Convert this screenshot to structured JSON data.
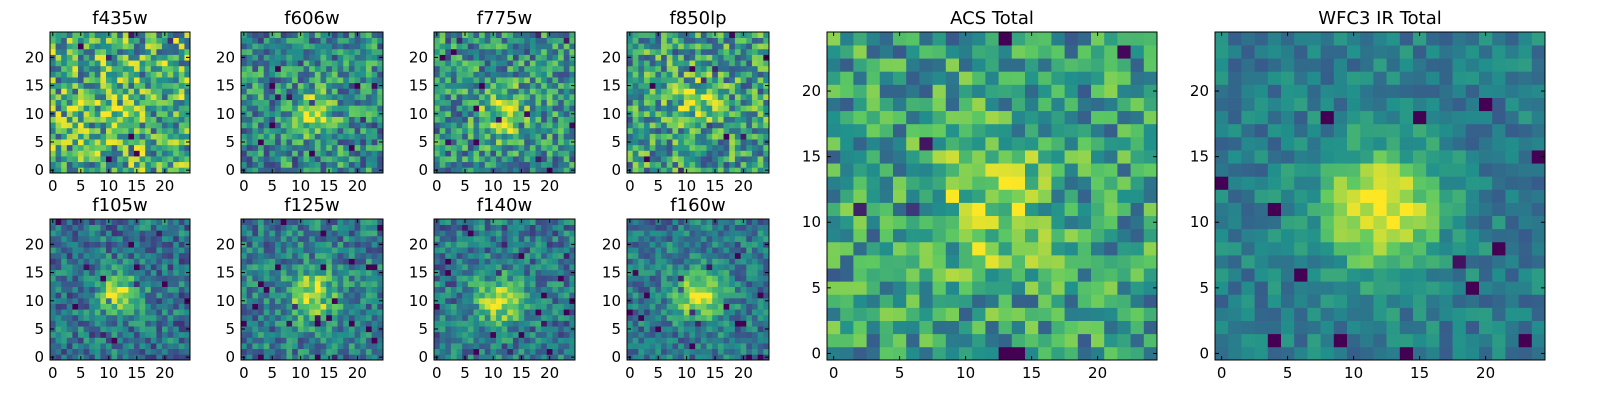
{
  "chart_data": [
    {
      "type": "heatmap",
      "title": "f435w",
      "seed": 11,
      "center": [
        12,
        10
      ],
      "signal": 0.12,
      "noise": 0.75,
      "base": 0.62,
      "sigma": 3.0,
      "xlim": [
        0,
        24
      ],
      "ylim": [
        0,
        24
      ],
      "xticks": [
        0,
        5,
        10,
        15,
        20
      ],
      "yticks": [
        0,
        5,
        10,
        15,
        20
      ]
    },
    {
      "type": "heatmap",
      "title": "f606w",
      "seed": 23,
      "center": [
        12,
        10
      ],
      "signal": 0.35,
      "noise": 0.6,
      "base": 0.48,
      "sigma": 3.0,
      "xlim": [
        0,
        24
      ],
      "ylim": [
        0,
        24
      ],
      "xticks": [
        0,
        5,
        10,
        15,
        20
      ],
      "yticks": [
        0,
        5,
        10,
        15,
        20
      ]
    },
    {
      "type": "heatmap",
      "title": "f775w",
      "seed": 37,
      "center": [
        12,
        10
      ],
      "signal": 0.35,
      "noise": 0.6,
      "base": 0.5,
      "sigma": 3.2,
      "xlim": [
        0,
        24
      ],
      "ylim": [
        0,
        24
      ],
      "xticks": [
        0,
        5,
        10,
        15,
        20
      ],
      "yticks": [
        0,
        5,
        10,
        15,
        20
      ]
    },
    {
      "type": "heatmap",
      "title": "f850lp",
      "seed": 41,
      "center": [
        12,
        12
      ],
      "signal": 0.25,
      "noise": 0.65,
      "base": 0.55,
      "sigma": 3.0,
      "xlim": [
        0,
        24
      ],
      "ylim": [
        0,
        24
      ],
      "xticks": [
        0,
        5,
        10,
        15,
        20
      ],
      "yticks": [
        0,
        5,
        10,
        15,
        20
      ]
    },
    {
      "type": "heatmap",
      "title": "f105w",
      "seed": 53,
      "center": [
        12,
        11
      ],
      "signal": 0.55,
      "noise": 0.45,
      "base": 0.38,
      "sigma": 2.6,
      "xlim": [
        0,
        24
      ],
      "ylim": [
        0,
        24
      ],
      "xticks": [
        0,
        5,
        10,
        15,
        20
      ],
      "yticks": [
        0,
        5,
        10,
        15,
        20
      ]
    },
    {
      "type": "heatmap",
      "title": "f125w",
      "seed": 67,
      "center": [
        12,
        11
      ],
      "signal": 0.5,
      "noise": 0.45,
      "base": 0.42,
      "sigma": 3.0,
      "xlim": [
        0,
        24
      ],
      "ylim": [
        0,
        24
      ],
      "xticks": [
        0,
        5,
        10,
        15,
        20
      ],
      "yticks": [
        0,
        5,
        10,
        15,
        20
      ]
    },
    {
      "type": "heatmap",
      "title": "f140w",
      "seed": 71,
      "center": [
        11,
        10
      ],
      "signal": 0.5,
      "noise": 0.45,
      "base": 0.4,
      "sigma": 3.0,
      "xlim": [
        0,
        24
      ],
      "ylim": [
        0,
        24
      ],
      "xticks": [
        0,
        5,
        10,
        15,
        20
      ],
      "yticks": [
        0,
        5,
        10,
        15,
        20
      ]
    },
    {
      "type": "heatmap",
      "title": "f160w",
      "seed": 83,
      "center": [
        12,
        11
      ],
      "signal": 0.55,
      "noise": 0.4,
      "base": 0.4,
      "sigma": 3.0,
      "xlim": [
        0,
        24
      ],
      "ylim": [
        0,
        24
      ],
      "xticks": [
        0,
        5,
        10,
        15,
        20
      ],
      "yticks": [
        0,
        5,
        10,
        15,
        20
      ]
    },
    {
      "type": "heatmap",
      "title": "ACS Total",
      "seed": 97,
      "center": [
        12,
        11
      ],
      "signal": 0.3,
      "noise": 0.55,
      "base": 0.55,
      "sigma": 3.4,
      "xlim": [
        0,
        24
      ],
      "ylim": [
        0,
        24
      ],
      "xticks": [
        0,
        5,
        10,
        15,
        20
      ],
      "yticks": [
        0,
        5,
        10,
        15,
        20
      ]
    },
    {
      "type": "heatmap",
      "title": "WFC3 IR Total",
      "seed": 131,
      "center": [
        12,
        11
      ],
      "signal": 0.6,
      "noise": 0.28,
      "base": 0.42,
      "sigma": 3.2,
      "xlim": [
        0,
        24
      ],
      "ylim": [
        0,
        24
      ],
      "xticks": [
        0,
        5,
        10,
        15,
        20
      ],
      "yticks": [
        0,
        5,
        10,
        15,
        20
      ]
    }
  ],
  "colormap": [
    "#440154",
    "#3b528b",
    "#21918c",
    "#5ec962",
    "#fde725"
  ]
}
